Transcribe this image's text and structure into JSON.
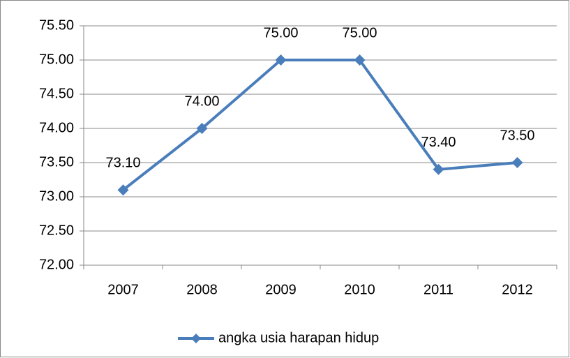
{
  "chart_data": {
    "type": "line",
    "categories": [
      "2007",
      "2008",
      "2009",
      "2010",
      "2011",
      "2012"
    ],
    "series": [
      {
        "name": "angka usia harapan hidup",
        "color": "#4a7ebb",
        "values": [
          73.1,
          74.0,
          75.0,
          75.0,
          73.4,
          73.5
        ],
        "value_labels": [
          "73.10",
          "74.00",
          "75.00",
          "75.00",
          "73.40",
          "73.50"
        ]
      }
    ],
    "ylim": [
      72,
      75.5
    ],
    "yticks": [
      {
        "value": 72,
        "label": "72.00"
      },
      {
        "value": 72.5,
        "label": "72.50"
      },
      {
        "value": 73,
        "label": "73.00"
      },
      {
        "value": 73.5,
        "label": "73.50"
      },
      {
        "value": 74,
        "label": "74.00"
      },
      {
        "value": 74.5,
        "label": "74.50"
      },
      {
        "value": 75,
        "label": "75.00"
      },
      {
        "value": 75.5,
        "label": "75.50"
      }
    ],
    "grid": true,
    "legend": "bottom"
  }
}
